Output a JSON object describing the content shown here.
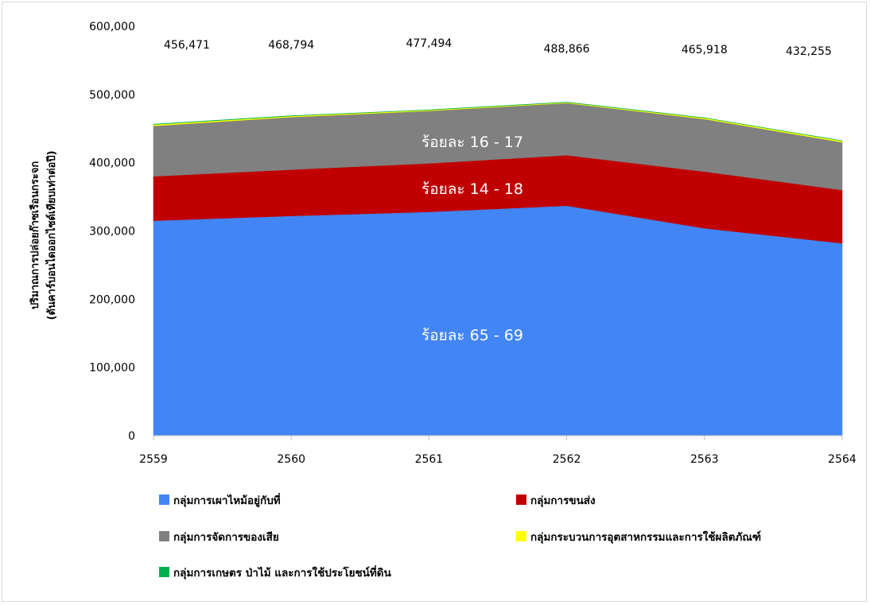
{
  "chart_data": {
    "type": "area",
    "stacked": true,
    "x": [
      "2559",
      "2560",
      "2561",
      "2562",
      "2563",
      "2564"
    ],
    "ylim": [
      0,
      600000
    ],
    "yticks": [
      "0",
      "100,000",
      "200,000",
      "300,000",
      "400,000",
      "500,000",
      "600,000"
    ],
    "ytick_values": [
      0,
      100000,
      200000,
      300000,
      400000,
      500000,
      600000
    ],
    "ylabel_lines": [
      "ปริมาณการปล่อยก๊าซเรือนกระจก",
      "(ตันคาร์บอนไดออกไซด์เทียบเท่าต่อปี)"
    ],
    "xlabel": "",
    "totals": [
      "456,471",
      "468,794",
      "477,494",
      "488,866",
      "465,918",
      "432,255"
    ],
    "series": [
      {
        "name": "กลุ่มการเผาไหม้อยู่กับที่",
        "color": "#4285f4",
        "values": [
          315000,
          322000,
          328000,
          337000,
          304000,
          282000
        ]
      },
      {
        "name": "กลุ่มการขนส่ง",
        "color": "#c00000",
        "values": [
          65000,
          68000,
          71000,
          74000,
          83000,
          78000
        ]
      },
      {
        "name": "กลุ่มการจัดการของเสีย",
        "color": "#808080",
        "values": [
          74000,
          77000,
          77000,
          76500,
          77000,
          70000
        ]
      },
      {
        "name": "กลุ่มกระบวนการอุตสาหกรรมและการใช้ผลิตภัณฑ์",
        "color": "#ffff00",
        "values": [
          2000,
          1500,
          1200,
          1000,
          1700,
          2000
        ]
      },
      {
        "name": "กลุ่มการเกษตร ป่าไม้ และการใช้ประโยชน์ที่ดิน",
        "color": "#00b050",
        "values": [
          471,
          294,
          294,
          366,
          218,
          255
        ]
      }
    ],
    "area_labels": [
      {
        "text": "ร้อยละ 65 - 69",
        "series": 0
      },
      {
        "text": "ร้อยละ 14 - 18",
        "series": 1
      },
      {
        "text": "ร้อยละ 16 - 17",
        "series": 2
      }
    ],
    "grid": false,
    "legend_position": "bottom"
  }
}
